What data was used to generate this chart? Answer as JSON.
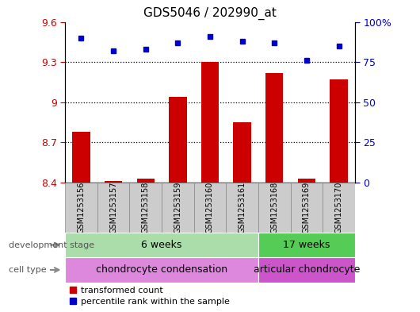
{
  "title": "GDS5046 / 202990_at",
  "samples": [
    "GSM1253156",
    "GSM1253157",
    "GSM1253158",
    "GSM1253159",
    "GSM1253160",
    "GSM1253161",
    "GSM1253168",
    "GSM1253169",
    "GSM1253170"
  ],
  "transformed_counts": [
    8.78,
    8.41,
    8.43,
    9.04,
    9.3,
    8.85,
    9.22,
    8.43,
    9.17
  ],
  "percentile_ranks": [
    90,
    82,
    83,
    87,
    91,
    88,
    87,
    76,
    85
  ],
  "ylim_left": [
    8.4,
    9.6
  ],
  "ylim_right": [
    0,
    100
  ],
  "yticks_left": [
    8.4,
    8.7,
    9.0,
    9.3,
    9.6
  ],
  "yticks_right": [
    0,
    25,
    50,
    75,
    100
  ],
  "ytick_labels_left": [
    "8.4",
    "8.7",
    "9",
    "9.3",
    "9.6"
  ],
  "ytick_labels_right": [
    "0",
    "25",
    "50",
    "75",
    "100%"
  ],
  "bar_color": "#cc0000",
  "dot_color": "#0000cc",
  "base_value": 8.4,
  "dev_stage_groups": [
    {
      "label": "6 weeks",
      "start": 0,
      "end": 6,
      "color": "#aaddaa"
    },
    {
      "label": "17 weeks",
      "start": 6,
      "end": 9,
      "color": "#55cc55"
    }
  ],
  "cell_type_groups": [
    {
      "label": "chondrocyte condensation",
      "start": 0,
      "end": 6,
      "color": "#dd88dd"
    },
    {
      "label": "articular chondrocyte",
      "start": 6,
      "end": 9,
      "color": "#cc55cc"
    }
  ],
  "dev_stage_label": "development stage",
  "cell_type_label": "cell type",
  "legend_bar_label": "transformed count",
  "legend_dot_label": "percentile rank within the sample",
  "grid_color": "#000000",
  "tick_color_left": "#cc0000",
  "tick_color_right": "#0000cc",
  "sample_box_color": "#cccccc",
  "sample_box_edge": "#888888"
}
